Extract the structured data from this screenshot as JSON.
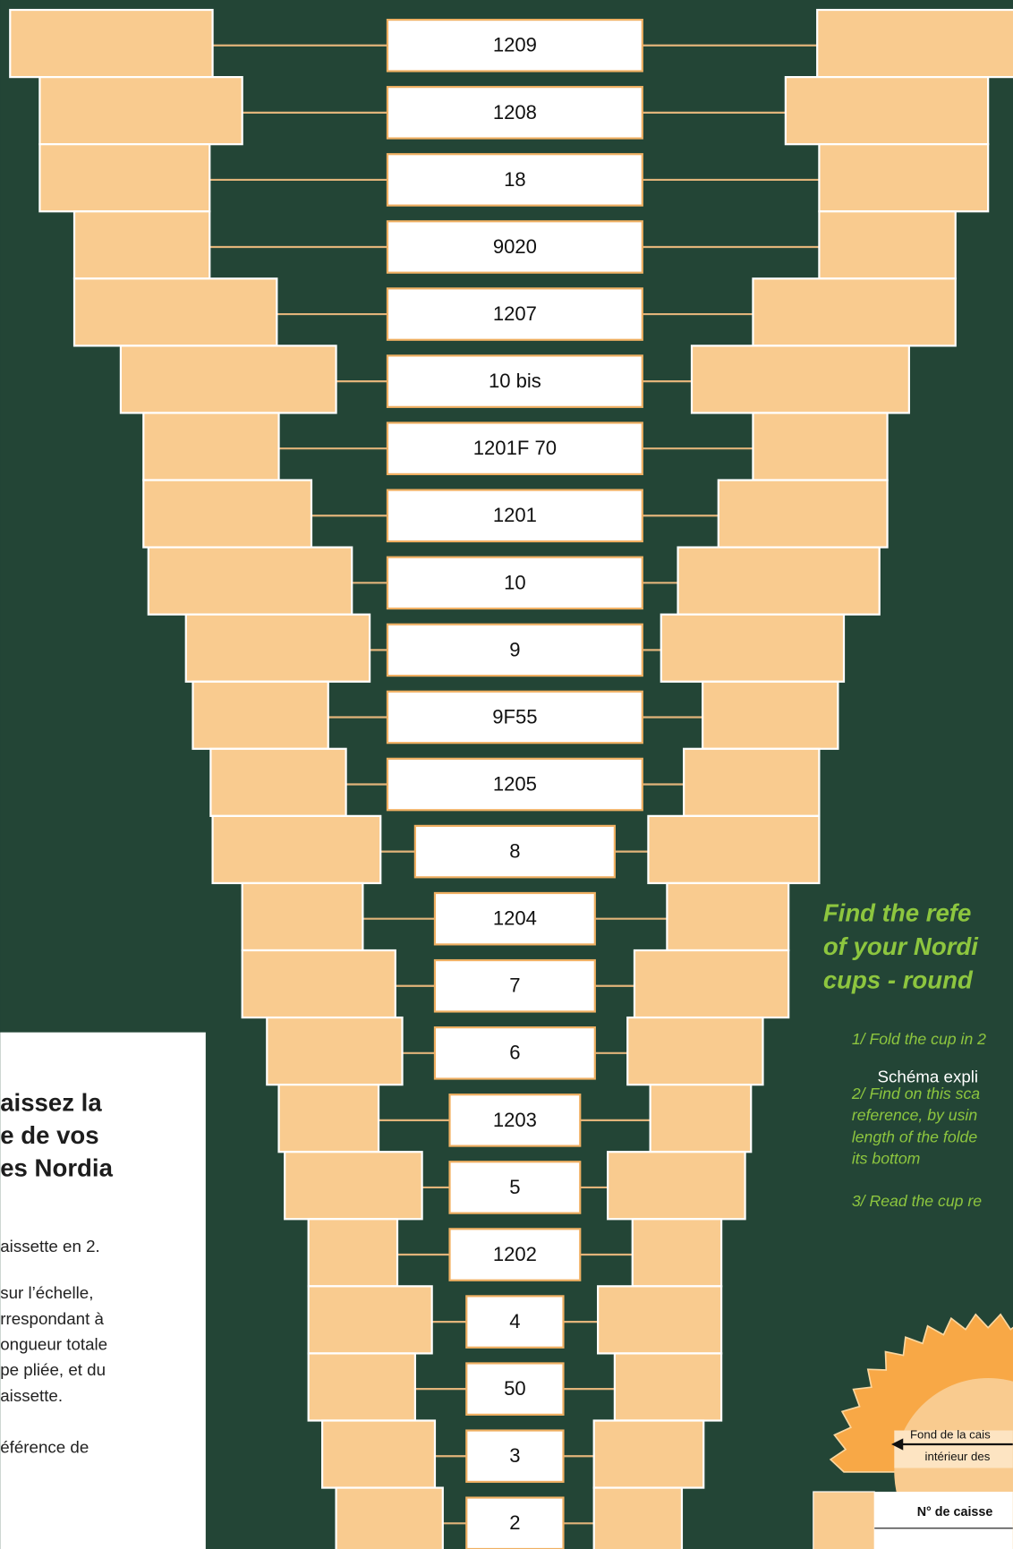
{
  "scale": {
    "labels": [
      "1209",
      "1208",
      "18",
      "9020",
      "1207",
      "10 bis",
      "1201F 70",
      "1201",
      "10",
      "9",
      "9F55",
      "1205",
      "8",
      "1204",
      "7",
      "6",
      "1203",
      "5",
      "1202",
      "4",
      "50",
      "3",
      "2"
    ]
  },
  "panel_fr": {
    "title": [
      "aissez la",
      "e de vos",
      "es Nordia"
    ],
    "lines": [
      "aissette en 2.",
      "sur l’échelle,",
      "rrespondant à",
      "ongueur totale",
      "pe pliée, et du",
      "aissette.",
      "éférence de"
    ]
  },
  "panel_en": {
    "title": [
      "Find the refe",
      "of your Nordi",
      "cups - round"
    ],
    "steps": [
      "1/ Fold the cup in 2",
      "2/ Find on this sca",
      "reference, by usin",
      "length of the folde",
      "its bottom",
      "3/ Read the cup re"
    ]
  },
  "diagram": {
    "caption": "Schéma expli",
    "labels": [
      "Fond de la cais",
      "intérieur des"
    ],
    "table_header": "N° de caisse"
  }
}
